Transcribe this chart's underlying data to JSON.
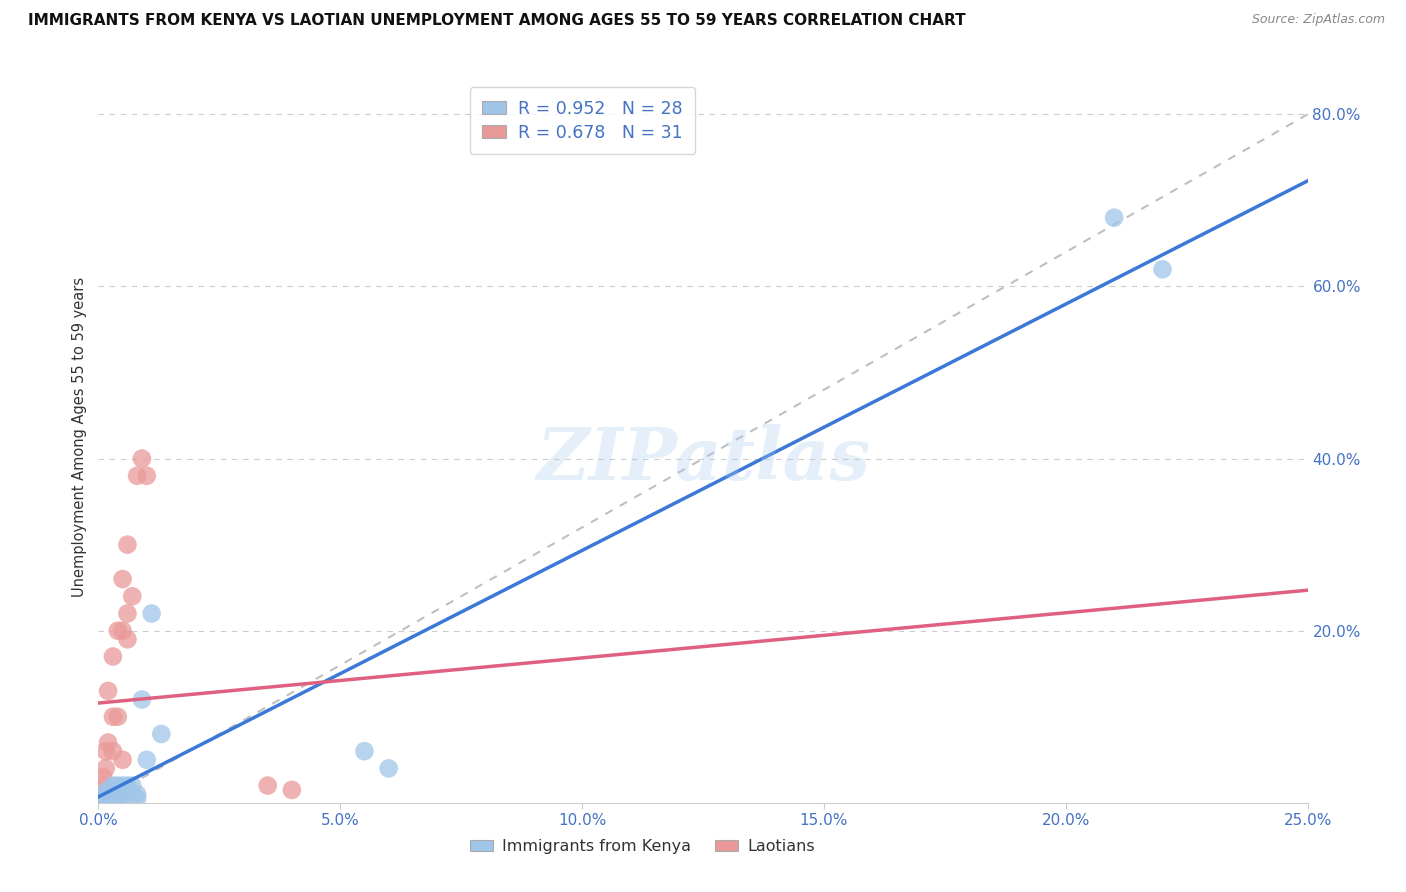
{
  "title": "IMMIGRANTS FROM KENYA VS LAOTIAN UNEMPLOYMENT AMONG AGES 55 TO 59 YEARS CORRELATION CHART",
  "source": "Source: ZipAtlas.com",
  "tick_color": "#4472c4",
  "ylabel": "Unemployment Among Ages 55 to 59 years",
  "xlim": [
    0.0,
    0.25
  ],
  "ylim": [
    0.0,
    0.85
  ],
  "xtick_labels": [
    "0.0%",
    "5.0%",
    "10.0%",
    "15.0%",
    "20.0%",
    "25.0%"
  ],
  "xtick_vals": [
    0.0,
    0.05,
    0.1,
    0.15,
    0.2,
    0.25
  ],
  "ytick_labels": [
    "20.0%",
    "40.0%",
    "60.0%",
    "80.0%"
  ],
  "ytick_vals": [
    0.2,
    0.4,
    0.6,
    0.8
  ],
  "kenya_color": "#9fc5e8",
  "laotian_color": "#ea9999",
  "kenya_line_color": "#3c78d8",
  "laotian_line_color": "#e06080",
  "dashed_line_color": "#b0b0b0",
  "legend_text_color": "#4472c4",
  "R_kenya": 0.952,
  "N_kenya": 28,
  "R_laotian": 0.678,
  "N_laotian": 31,
  "watermark": "ZIPatlas",
  "kenya_scatter_x": [
    0.0005,
    0.001,
    0.001,
    0.0015,
    0.002,
    0.002,
    0.002,
    0.003,
    0.003,
    0.003,
    0.004,
    0.004,
    0.004,
    0.005,
    0.005,
    0.006,
    0.006,
    0.007,
    0.008,
    0.008,
    0.009,
    0.01,
    0.011,
    0.013,
    0.055,
    0.06,
    0.21,
    0.22
  ],
  "kenya_scatter_y": [
    0.005,
    0.005,
    0.01,
    0.005,
    0.005,
    0.01,
    0.015,
    0.01,
    0.02,
    0.01,
    0.005,
    0.02,
    0.01,
    0.02,
    0.01,
    0.02,
    0.01,
    0.02,
    0.005,
    0.01,
    0.12,
    0.05,
    0.22,
    0.08,
    0.06,
    0.04,
    0.68,
    0.62
  ],
  "laotian_scatter_x": [
    0.0005,
    0.0005,
    0.001,
    0.001,
    0.001,
    0.0015,
    0.0015,
    0.002,
    0.002,
    0.002,
    0.002,
    0.003,
    0.003,
    0.003,
    0.003,
    0.003,
    0.004,
    0.004,
    0.004,
    0.005,
    0.005,
    0.005,
    0.006,
    0.006,
    0.006,
    0.007,
    0.008,
    0.009,
    0.01,
    0.035,
    0.04
  ],
  "laotian_scatter_y": [
    0.005,
    0.02,
    0.005,
    0.01,
    0.03,
    0.04,
    0.06,
    0.005,
    0.01,
    0.07,
    0.13,
    0.005,
    0.01,
    0.06,
    0.1,
    0.17,
    0.005,
    0.1,
    0.2,
    0.05,
    0.2,
    0.26,
    0.19,
    0.22,
    0.3,
    0.24,
    0.38,
    0.4,
    0.38,
    0.02,
    0.015
  ],
  "background_color": "#ffffff",
  "grid_color": "#cccccc"
}
